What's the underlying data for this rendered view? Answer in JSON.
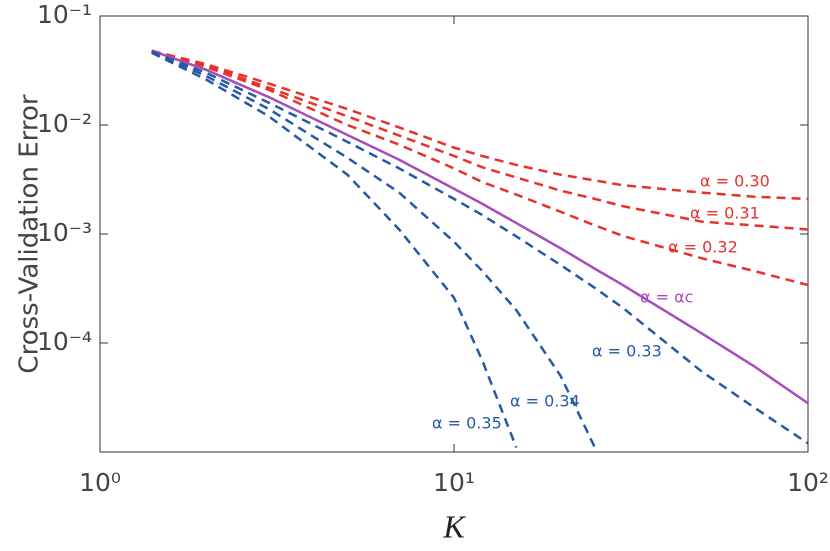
{
  "chart_data": {
    "type": "line",
    "xlabel": "K",
    "ylabel": "Cross-Validation Error",
    "log_x": true,
    "log_y": true,
    "xlim": [
      1,
      100
    ],
    "ylim": [
      1e-05,
      0.1
    ],
    "xticks": [
      {
        "value": 1,
        "label": "10⁰"
      },
      {
        "value": 10,
        "label": "10¹"
      },
      {
        "value": 100,
        "label": "10²"
      }
    ],
    "yticks": [
      {
        "value": 0.1,
        "label": "10⁻¹"
      },
      {
        "value": 0.01,
        "label": "10⁻²"
      },
      {
        "value": 0.001,
        "label": "10⁻³"
      },
      {
        "value": 0.0001,
        "label": "10⁻⁴"
      }
    ],
    "x": [
      1.4,
      2,
      3,
      5,
      7,
      10,
      12,
      15,
      20,
      25,
      30,
      50,
      70,
      100
    ],
    "series": [
      {
        "name": "α = 0.30",
        "color": "#e8312a",
        "dashed": true,
        "values": [
          0.048,
          0.036,
          0.024,
          0.014,
          0.0095,
          0.0062,
          0.0052,
          0.0043,
          0.0035,
          0.0031,
          0.0028,
          0.0024,
          0.0022,
          0.0021
        ]
      },
      {
        "name": "α = 0.31",
        "color": "#e8312a",
        "dashed": true,
        "values": [
          0.048,
          0.035,
          0.022,
          0.012,
          0.008,
          0.0052,
          0.0041,
          0.0033,
          0.0025,
          0.0021,
          0.0018,
          0.0013,
          0.0012,
          0.0011
        ]
      },
      {
        "name": "α = 0.32",
        "color": "#e8312a",
        "dashed": true,
        "values": [
          0.048,
          0.034,
          0.021,
          0.01,
          0.0066,
          0.004,
          0.003,
          0.0023,
          0.0016,
          0.0012,
          0.00096,
          0.0006,
          0.00046,
          0.00034
        ]
      },
      {
        "name": "α = αc",
        "color": "#a64dbc",
        "dashed": false,
        "values": [
          0.048,
          0.032,
          0.018,
          0.0081,
          0.0048,
          0.0026,
          0.0019,
          0.00126,
          0.00074,
          0.00048,
          0.00034,
          0.000123,
          6.2e-05,
          2.8e-05
        ]
      },
      {
        "name": "α = 0.33",
        "color": "#2559a8",
        "dashed": true,
        "values": [
          0.047,
          0.03,
          0.016,
          0.007,
          0.004,
          0.0021,
          0.0015,
          0.00095,
          0.00052,
          0.00032,
          0.00021,
          5.5e-05,
          2.6e-05,
          1.2e-05
        ]
      },
      {
        "name": "α = 0.34",
        "color": "#2559a8",
        "dashed": true,
        "values": [
          0.047,
          0.028,
          0.014,
          0.005,
          0.0024,
          0.00085,
          0.00046,
          0.0002,
          5e-05,
          1.1e-05,
          null,
          null,
          null,
          null
        ]
      },
      {
        "name": "α = 0.35",
        "color": "#2559a8",
        "dashed": true,
        "values": [
          0.046,
          0.026,
          0.012,
          0.0035,
          0.0011,
          0.00026,
          7e-05,
          1.1e-05,
          null,
          null,
          null,
          null,
          null,
          null
        ]
      }
    ]
  }
}
